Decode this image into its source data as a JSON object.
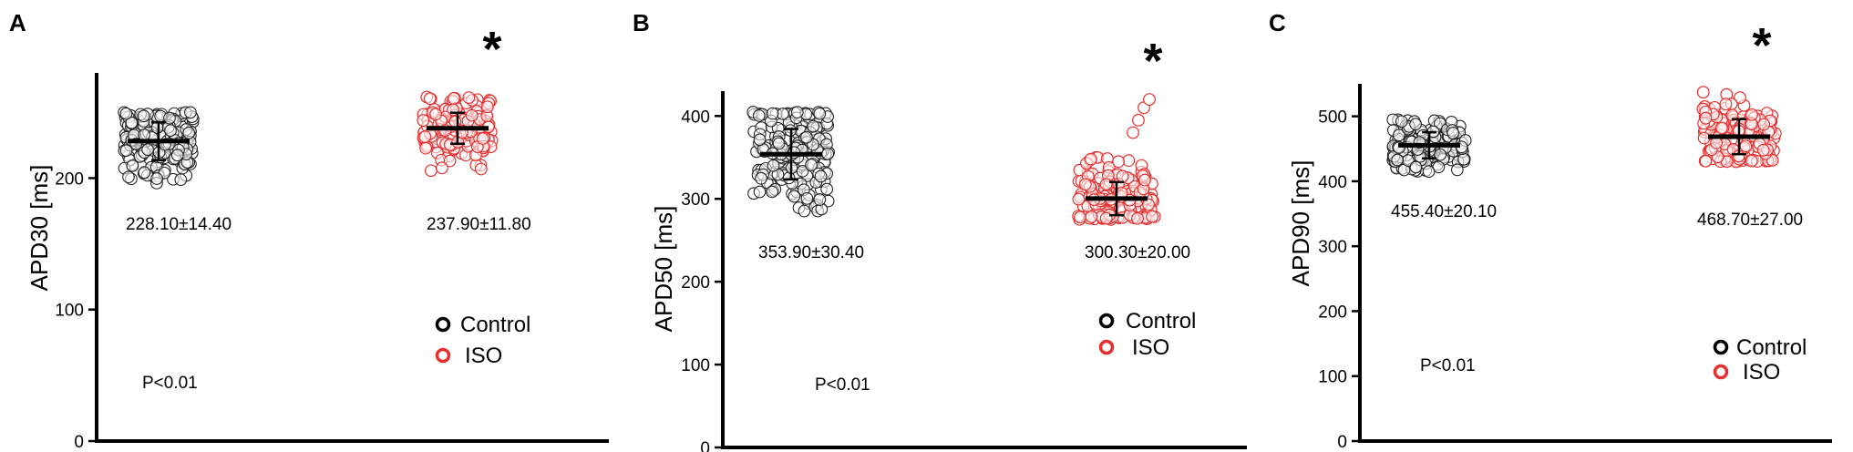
{
  "colors": {
    "control": "#222222",
    "iso": "#e53030",
    "axis": "#000000",
    "marker": "#000000"
  },
  "chart_data": [
    {
      "type": "scatter",
      "panel_label": "A",
      "ylabel": "APD30 [ms]",
      "ylim": [
        0,
        280
      ],
      "yticks": [
        0,
        100,
        200
      ],
      "series": [
        {
          "name": "Control",
          "mean": 228.1,
          "sd": 14.4,
          "spread": [
            196,
            250
          ],
          "annotation": "228.10±14.40"
        },
        {
          "name": "ISO",
          "mean": 237.9,
          "sd": 11.8,
          "spread": [
            198,
            262
          ],
          "annotation": "237.90±11.80"
        }
      ],
      "significance": "*",
      "pvalue": "P<0.01",
      "legend": [
        "Control",
        "ISO"
      ]
    },
    {
      "type": "scatter",
      "panel_label": "B",
      "ylabel": "APD50 [ms]",
      "ylim": [
        0,
        430
      ],
      "yticks": [
        0,
        100,
        200,
        300,
        400
      ],
      "series": [
        {
          "name": "Control",
          "mean": 353.9,
          "sd": 30.4,
          "spread": [
            285,
            405
          ],
          "annotation": "353.90±30.40"
        },
        {
          "name": "ISO",
          "mean": 300.3,
          "sd": 20.0,
          "spread": [
            275,
            350
          ],
          "outliers": [
            380,
            395,
            410,
            420
          ],
          "annotation": "300.30±20.00"
        }
      ],
      "significance": "*",
      "pvalue": "P<0.01",
      "legend": [
        "Control",
        "ISO"
      ]
    },
    {
      "type": "scatter",
      "panel_label": "C",
      "ylabel": "APD90 [ms]",
      "ylim": [
        0,
        550
      ],
      "yticks": [
        0,
        100,
        200,
        300,
        400,
        500
      ],
      "series": [
        {
          "name": "Control",
          "mean": 455.4,
          "sd": 20.1,
          "spread": [
            415,
            495
          ],
          "annotation": "455.40±20.10"
        },
        {
          "name": "ISO",
          "mean": 468.7,
          "sd": 27.0,
          "spread": [
            430,
            540
          ],
          "annotation": "468.70±27.00"
        }
      ],
      "significance": "*",
      "pvalue": "P<0.01",
      "legend": [
        "Control",
        "ISO"
      ]
    }
  ]
}
